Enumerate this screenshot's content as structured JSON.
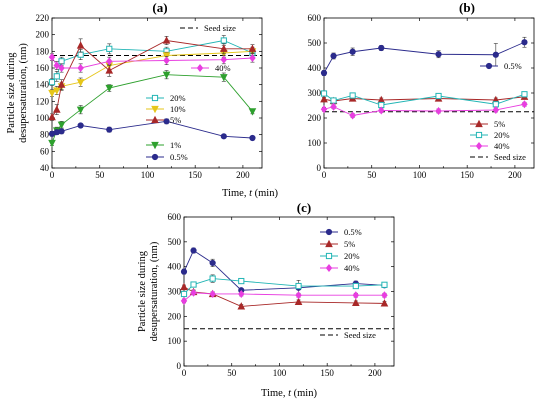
{
  "chart_data": [
    {
      "type": "line",
      "panel": "(a)",
      "xlabel": "",
      "ylabel": "Particle size during desupersaturation, (nm)",
      "xlim": [
        0,
        220
      ],
      "ylim": [
        40,
        220
      ],
      "xticks": [
        0,
        50,
        100,
        150,
        200
      ],
      "yticks": [
        40,
        60,
        80,
        100,
        120,
        140,
        160,
        180,
        200,
        220
      ],
      "seed_size": 175,
      "seed_label": "Seed size",
      "series": [
        {
          "name": "20%",
          "color": "#22b5b5",
          "marker": "square",
          "x": [
            0,
            5,
            10,
            30,
            60,
            120,
            180,
            210
          ],
          "y": [
            143,
            150,
            168,
            176,
            183,
            180,
            193,
            178
          ],
          "err": [
            4,
            6,
            5,
            6,
            6,
            5,
            6,
            5
          ]
        },
        {
          "name": "10%",
          "color": "#e6c61a",
          "marker": "triangle-down",
          "x": [
            0,
            5,
            10,
            30,
            60,
            120,
            180,
            210
          ],
          "y": [
            130,
            133,
            138,
            143,
            163,
            175,
            178,
            180
          ],
          "err": [
            4,
            5,
            5,
            5,
            5,
            4,
            5,
            5
          ]
        },
        {
          "name": "5%",
          "color": "#a82828",
          "marker": "triangle",
          "x": [
            0,
            5,
            10,
            30,
            60,
            120,
            180,
            210
          ],
          "y": [
            101,
            110,
            140,
            187,
            157,
            193,
            183,
            183
          ],
          "err": [
            4,
            6,
            6,
            8,
            7,
            5,
            6,
            5
          ]
        },
        {
          "name": "40%",
          "color": "#e83ee0",
          "marker": "diamond",
          "x": [
            0,
            5,
            10,
            30,
            60,
            120,
            180,
            210
          ],
          "y": [
            173,
            163,
            160,
            160,
            168,
            169,
            170,
            172
          ],
          "err": [
            4,
            5,
            5,
            5,
            5,
            5,
            5,
            5
          ]
        },
        {
          "name": "1%",
          "color": "#2ea02e",
          "marker": "triangle-down",
          "x": [
            0,
            5,
            10,
            30,
            60,
            120,
            180,
            210
          ],
          "y": [
            70,
            85,
            92,
            110,
            136,
            152,
            149,
            108
          ],
          "err": [
            3,
            4,
            4,
            5,
            4,
            5,
            5,
            3
          ]
        },
        {
          "name": "0.5%",
          "color": "#2b2b8c",
          "marker": "circle",
          "x": [
            0,
            5,
            10,
            30,
            60,
            120,
            180,
            210
          ],
          "y": [
            81,
            83,
            84,
            91,
            86,
            96,
            78,
            76
          ],
          "err": [
            3,
            3,
            3,
            2,
            3,
            3,
            2,
            2
          ]
        }
      ]
    },
    {
      "type": "line",
      "panel": "(b)",
      "xlabel": "",
      "ylabel": "",
      "xlim": [
        0,
        220
      ],
      "ylim": [
        0,
        600
      ],
      "xticks": [
        0,
        50,
        100,
        150,
        200
      ],
      "yticks": [
        0,
        100,
        200,
        300,
        400,
        500,
        600
      ],
      "seed_size": 225,
      "seed_label": "Seed size",
      "series": [
        {
          "name": "0.5%",
          "color": "#2b2b8c",
          "marker": "circle",
          "x": [
            0,
            10,
            30,
            60,
            120,
            180,
            210
          ],
          "y": [
            380,
            448,
            465,
            480,
            455,
            453,
            503
          ],
          "err": [
            10,
            12,
            15,
            10,
            14,
            45,
            20
          ]
        },
        {
          "name": "5%",
          "color": "#a82828",
          "marker": "triangle",
          "x": [
            0,
            10,
            30,
            60,
            120,
            180,
            210
          ],
          "y": [
            275,
            268,
            278,
            272,
            278,
            272,
            285
          ],
          "err": [
            8,
            8,
            8,
            8,
            8,
            8,
            8
          ]
        },
        {
          "name": "20%",
          "color": "#22b5b5",
          "marker": "square",
          "x": [
            0,
            10,
            30,
            60,
            120,
            180,
            210
          ],
          "y": [
            298,
            270,
            290,
            252,
            288,
            255,
            295
          ],
          "err": [
            8,
            8,
            10,
            8,
            8,
            10,
            8
          ]
        },
        {
          "name": "40%",
          "color": "#e83ee0",
          "marker": "diamond",
          "x": [
            0,
            10,
            30,
            60,
            120,
            180,
            210
          ],
          "y": [
            235,
            245,
            210,
            230,
            228,
            232,
            255
          ],
          "err": [
            8,
            8,
            8,
            8,
            8,
            8,
            8
          ]
        }
      ]
    },
    {
      "type": "line",
      "panel": "(c)",
      "xlabel": "Time, t (min)",
      "ylabel": "Particle size during desupersaturation, (nm)",
      "xlim": [
        0,
        220
      ],
      "ylim": [
        0,
        600
      ],
      "xticks": [
        0,
        50,
        100,
        150,
        200
      ],
      "yticks": [
        0,
        100,
        200,
        300,
        400,
        500,
        600
      ],
      "seed_size": 150,
      "seed_label": "Seed size",
      "series": [
        {
          "name": "0.5%",
          "color": "#2b2b8c",
          "marker": "circle",
          "x": [
            0,
            10,
            30,
            60,
            120,
            180,
            210
          ],
          "y": [
            380,
            465,
            415,
            305,
            315,
            332,
            325
          ],
          "err": [
            10,
            10,
            15,
            8,
            30,
            10,
            8
          ]
        },
        {
          "name": "5%",
          "color": "#a82828",
          "marker": "triangle",
          "x": [
            0,
            10,
            30,
            60,
            120,
            180,
            210
          ],
          "y": [
            318,
            298,
            290,
            240,
            258,
            254,
            252
          ],
          "err": [
            8,
            8,
            8,
            8,
            8,
            8,
            8
          ]
        },
        {
          "name": "20%",
          "color": "#22b5b5",
          "marker": "square",
          "x": [
            0,
            10,
            30,
            60,
            120,
            180,
            210
          ],
          "y": [
            290,
            328,
            352,
            342,
            322,
            322,
            327
          ],
          "err": [
            8,
            10,
            15,
            10,
            10,
            10,
            8
          ]
        },
        {
          "name": "40%",
          "color": "#e83ee0",
          "marker": "diamond",
          "x": [
            0,
            10,
            30,
            60,
            120,
            180,
            210
          ],
          "y": [
            262,
            295,
            290,
            290,
            285,
            285,
            285
          ],
          "err": [
            8,
            8,
            8,
            8,
            8,
            8,
            8
          ]
        }
      ]
    }
  ],
  "axes_text": {
    "xlabel_prefix": "Time, ",
    "xlabel_var": "t",
    "xlabel_suffix": " (min)",
    "ylabel_line1": "Particle size during",
    "ylabel_line2": "desupersaturation, (nm)"
  }
}
